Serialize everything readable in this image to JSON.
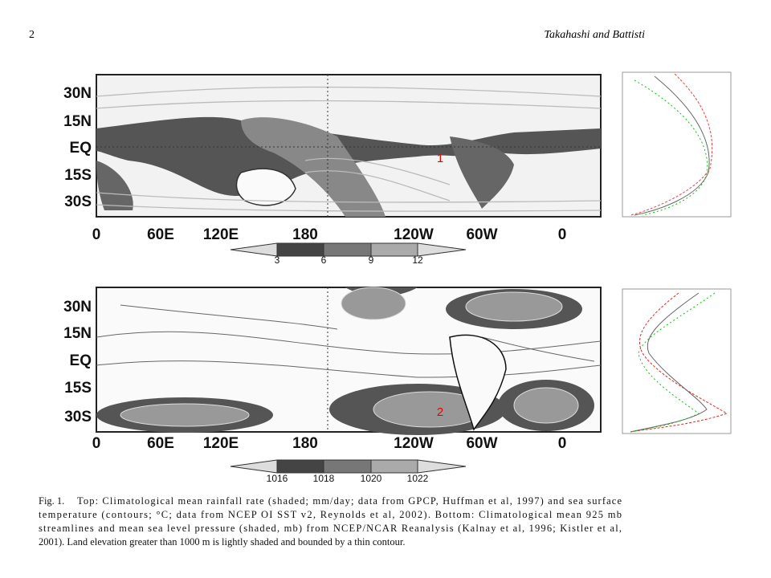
{
  "header": {
    "page_number": "2",
    "authors": "Takahashi and Battisti"
  },
  "figure": {
    "panels": [
      {
        "lat_labels": [
          "30N",
          "15N",
          "EQ",
          "15S",
          "30S"
        ],
        "lon_labels": [
          "0",
          "60E",
          "120E",
          "180",
          "120W",
          "60W",
          "0"
        ],
        "colorbar_labels": [
          "3",
          "6",
          "9",
          "12"
        ],
        "marker": "1"
      },
      {
        "lat_labels": [
          "30N",
          "15N",
          "EQ",
          "15S",
          "30S"
        ],
        "lon_labels": [
          "0",
          "60E",
          "120E",
          "180",
          "120W",
          "60W",
          "0"
        ],
        "colorbar_labels": [
          "1016",
          "1018",
          "1020",
          "1022"
        ],
        "marker": "2"
      }
    ],
    "caption_label": "Fig. 1.",
    "caption_lines": [
      "Top: Climatological mean rainfall rate (shaded; mm/day; data from GPCP, Huffman et al, 1997) and sea surface",
      "temperature (contours; °C; data from NCEP OI SST v2, Reynolds et al, 2002). Bottom: Climatological mean 925 mb",
      "streamlines and mean sea level pressure (shaded, mb) from NCEP/NCAR Reanalysis (Kalnay et al, 1996; Kistler et al,",
      "2001). Land elevation greater than 1000 m is lightly shaded and bounded by a thin contour."
    ]
  }
}
